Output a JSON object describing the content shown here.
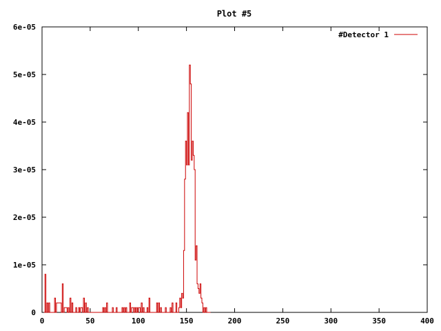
{
  "chart_data": {
    "type": "line",
    "title": "Plot #5",
    "xlabel": "",
    "ylabel": "",
    "xlim": [
      0,
      400
    ],
    "ylim": [
      0,
      6e-05
    ],
    "x_ticks": [
      0,
      50,
      100,
      150,
      200,
      250,
      300,
      350,
      400
    ],
    "x_tick_labels": [
      "0",
      "50",
      "100",
      "150",
      "200",
      "250",
      "300",
      "350",
      "400"
    ],
    "y_ticks": [
      0,
      1e-05,
      2e-05,
      3e-05,
      4e-05,
      5e-05,
      6e-05
    ],
    "y_tick_labels": [
      "0",
      "1e-05",
      "2e-05",
      "3e-05",
      "4e-05",
      "5e-05",
      "6e-05"
    ],
    "grid": false,
    "legend_position": "top-right",
    "step": true,
    "series": [
      {
        "name": "#Detector 1",
        "color": "#cc0000",
        "x": [
          2,
          3,
          4,
          5,
          6,
          7,
          8,
          12,
          13,
          14,
          15,
          20,
          21,
          22,
          23,
          26,
          27,
          28,
          29,
          30,
          31,
          32,
          34,
          35,
          36,
          38,
          39,
          40,
          42,
          43,
          44,
          45,
          46,
          47,
          48,
          62,
          63,
          64,
          65,
          66,
          67,
          68,
          72,
          73,
          74,
          76,
          77,
          78,
          82,
          83,
          84,
          85,
          86,
          87,
          88,
          90,
          91,
          92,
          93,
          95,
          96,
          97,
          98,
          99,
          100,
          102,
          103,
          104,
          105,
          106,
          108,
          109,
          110,
          111,
          112,
          114,
          118,
          119,
          120,
          121,
          122,
          123,
          124,
          127,
          128,
          129,
          132,
          133,
          134,
          135,
          136,
          138,
          139,
          140,
          142,
          143,
          144,
          145,
          146,
          147,
          148,
          149,
          150,
          151,
          152,
          153,
          154,
          155,
          156,
          157,
          158,
          159,
          160,
          161,
          162,
          163,
          164,
          165,
          166,
          167,
          168,
          169,
          170,
          171,
          172,
          173,
          174
        ],
        "y": [
          0,
          8e-06,
          0,
          2e-06,
          0,
          2e-06,
          0,
          0,
          3e-06,
          0,
          2e-06,
          0,
          6e-06,
          0,
          1e-06,
          0,
          1e-06,
          0,
          3e-06,
          0,
          2e-06,
          0,
          0,
          1e-06,
          0,
          1e-06,
          0,
          1e-06,
          0,
          3e-06,
          0,
          2e-06,
          0,
          1e-06,
          0,
          0,
          1e-06,
          0,
          1e-06,
          0,
          2e-06,
          0,
          0,
          1e-06,
          0,
          0,
          1e-06,
          0,
          0,
          1e-06,
          0,
          1e-06,
          0,
          1e-06,
          0,
          0,
          2e-06,
          0,
          1e-06,
          0,
          1e-06,
          0,
          1e-06,
          0,
          1e-06,
          0,
          2e-06,
          0,
          1e-06,
          0,
          0,
          1e-06,
          0,
          3e-06,
          0,
          0,
          0,
          2e-06,
          0,
          2e-06,
          0,
          1e-06,
          0,
          0,
          1e-06,
          0,
          0,
          1e-06,
          0,
          2e-06,
          0,
          0,
          2e-06,
          0,
          1e-06,
          3e-06,
          1e-06,
          4e-06,
          3e-06,
          1.3e-05,
          2.8e-05,
          3.6e-05,
          3.1e-05,
          4.2e-05,
          3.1e-05,
          5.2e-05,
          4.8e-05,
          3.2e-05,
          3.6e-05,
          3.3e-05,
          3e-05,
          1.1e-05,
          1.4e-05,
          6e-06,
          5e-06,
          4e-06,
          6e-06,
          3e-06,
          2e-06,
          0,
          1e-06,
          0,
          1e-06,
          0,
          0,
          0,
          0
        ]
      }
    ]
  }
}
